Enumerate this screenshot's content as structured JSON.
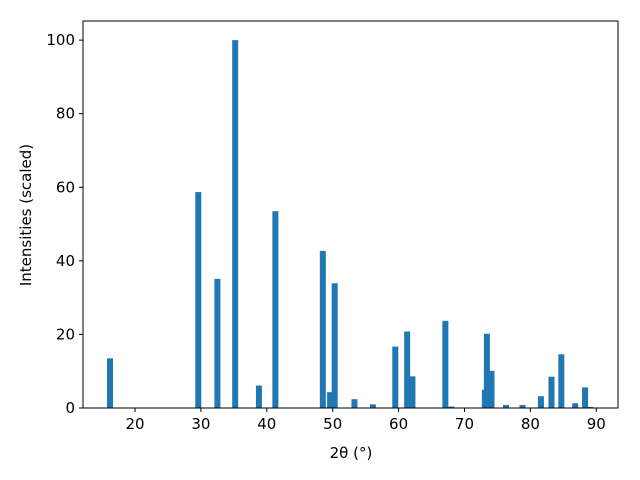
{
  "chart_data": {
    "type": "bar",
    "x_label": "2θ (°)",
    "y_label": "Intensities (scaled)",
    "x": [
      16.2,
      29.6,
      32.5,
      35.2,
      38.8,
      41.3,
      48.5,
      49.6,
      50.3,
      53.3,
      56.1,
      59.5,
      61.3,
      62.1,
      67.1,
      68.0,
      73.1,
      73.4,
      74.1,
      76.3,
      78.8,
      81.6,
      83.2,
      84.7,
      86.8,
      88.3,
      89.1
    ],
    "values": [
      13.5,
      58.7,
      35.1,
      100,
      6.1,
      53.5,
      42.7,
      4.3,
      33.9,
      2.4,
      1.0,
      16.7,
      20.8,
      8.6,
      23.7,
      0.4,
      5.0,
      20.2,
      10.1,
      0.8,
      0.8,
      3.2,
      8.5,
      14.6,
      1.3,
      5.6,
      0.3
    ],
    "color": "#1f77b4",
    "xlim": [
      12.1,
      93.3
    ],
    "xticks": [
      20,
      30,
      40,
      50,
      60,
      70,
      80,
      90
    ],
    "ylim": [
      0,
      105.2
    ],
    "yticks": [
      0,
      20,
      40,
      60,
      80,
      100
    ]
  }
}
